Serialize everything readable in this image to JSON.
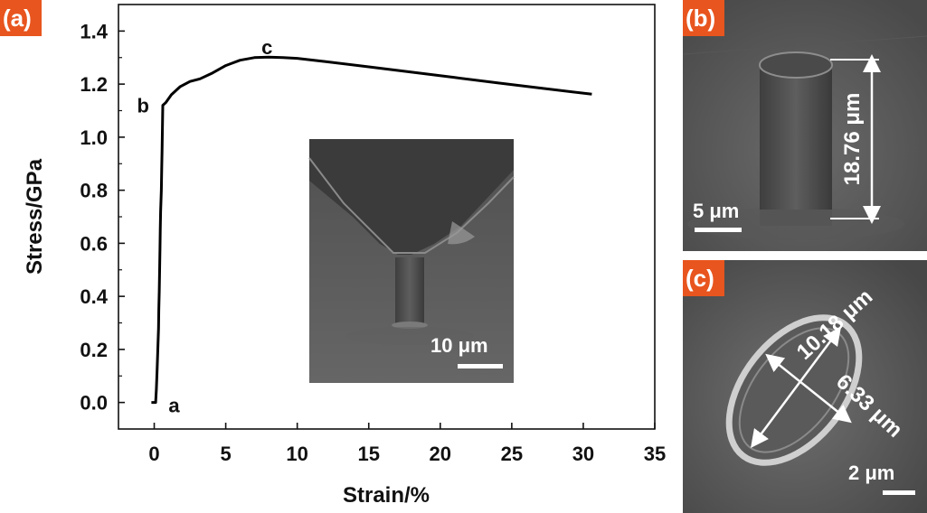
{
  "panels": {
    "a": {
      "tag": "(a)"
    },
    "b": {
      "tag": "(b)",
      "height_label": "18.76 μm",
      "scale_label": "5 μm"
    },
    "c": {
      "tag": "(c)",
      "major_label": "10.18 μm",
      "minor_label": "6.33 μm",
      "scale_label": "2 μm"
    }
  },
  "inset": {
    "scale_label": "10 μm"
  },
  "colors": {
    "tag_bg": "#e8551e",
    "curve": "#000000",
    "sem_bg": "#5b5b5b"
  },
  "chart_data": {
    "type": "line",
    "xlabel": "Strain/%",
    "ylabel": "Stress/GPa",
    "xlim": [
      -2.5,
      35
    ],
    "ylim": [
      -0.1,
      1.5
    ],
    "xticks": [
      0,
      5,
      10,
      15,
      20,
      25,
      30,
      35
    ],
    "yticks": [
      0.0,
      0.2,
      0.4,
      0.6,
      0.8,
      1.0,
      1.2,
      1.4
    ],
    "xtick_labels": [
      "0",
      "5",
      "10",
      "15",
      "20",
      "25",
      "30",
      "35"
    ],
    "ytick_labels": [
      "0.0",
      "0.2",
      "0.4",
      "0.6",
      "0.8",
      "1.0",
      "1.2",
      "1.4"
    ],
    "grid": false,
    "series": [
      {
        "x": [
          -0.2,
          0.1,
          0.15,
          0.2,
          0.25,
          0.3,
          0.32,
          0.35,
          0.38,
          0.4,
          0.42,
          0.45,
          0.5,
          0.52,
          0.55,
          0.6,
          0.8,
          1.2,
          1.8,
          2.5,
          3.2,
          4.0,
          5.0,
          6.0,
          7.0,
          8.0,
          9.0,
          10.0,
          12.0,
          15.0,
          18.0,
          21.0,
          24.0,
          27.0,
          30.6
        ],
        "y": [
          0.0,
          0.0,
          0.05,
          0.12,
          0.2,
          0.28,
          0.35,
          0.42,
          0.5,
          0.58,
          0.65,
          0.72,
          0.8,
          0.88,
          0.95,
          1.12,
          1.13,
          1.16,
          1.19,
          1.21,
          1.22,
          1.24,
          1.27,
          1.29,
          1.3,
          1.302,
          1.3,
          1.297,
          1.285,
          1.265,
          1.245,
          1.225,
          1.205,
          1.185,
          1.162
        ]
      }
    ],
    "annotations": [
      {
        "text": "a",
        "x": 1.0,
        "y": -0.01
      },
      {
        "text": "b",
        "x": -1.2,
        "y": 1.12
      },
      {
        "text": "c",
        "x": 7.5,
        "y": 1.34
      }
    ]
  }
}
